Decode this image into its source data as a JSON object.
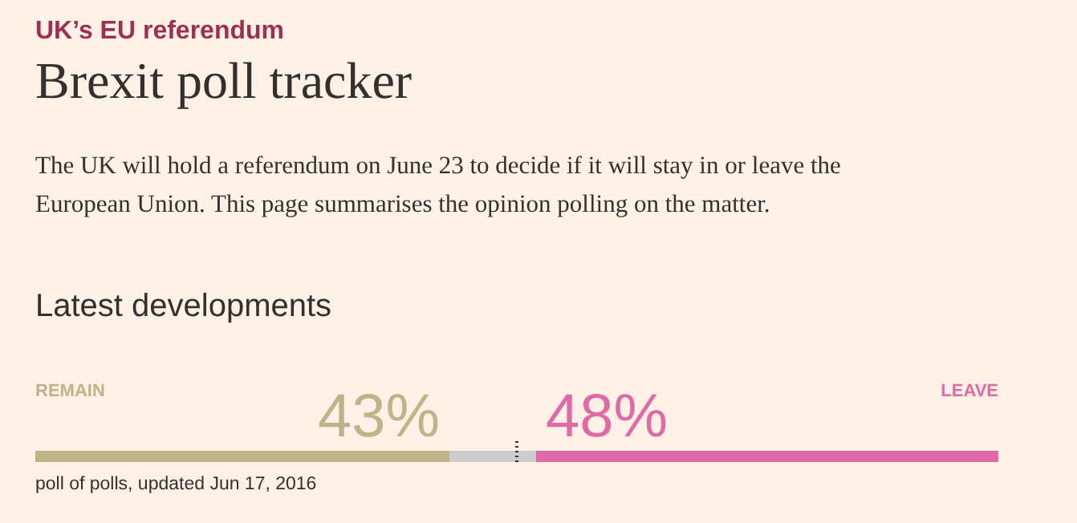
{
  "chart_data": {
    "type": "bar",
    "orientation": "horizontal",
    "stacked": true,
    "title": "Brexit poll tracker",
    "subtitle": "The UK will hold a referendum on June 23 to decide if it will stay in or leave the European Union. This page summarises the opinion polling on the matter.",
    "annotations": [
      "UK’s EU referendum",
      "Latest developments",
      "poll of polls, updated Jun 17, 2016"
    ],
    "categories": [
      null
    ],
    "series": [
      {
        "name": "REMAIN",
        "color": "#bfb38a",
        "values": [
          43
        ],
        "value_labels": [
          "43%"
        ]
      },
      {
        "color": "#cccccc",
        "values": [
          9
        ]
      },
      {
        "name": "LEAVE",
        "color": "#e06aa6",
        "values": [
          48
        ],
        "value_labels": [
          "48%"
        ]
      }
    ],
    "xlim": [
      0,
      100
    ],
    "ref_lines": [
      {
        "axis": "x",
        "value": 50,
        "line_style": "dotted",
        "color": "#333333"
      }
    ]
  }
}
